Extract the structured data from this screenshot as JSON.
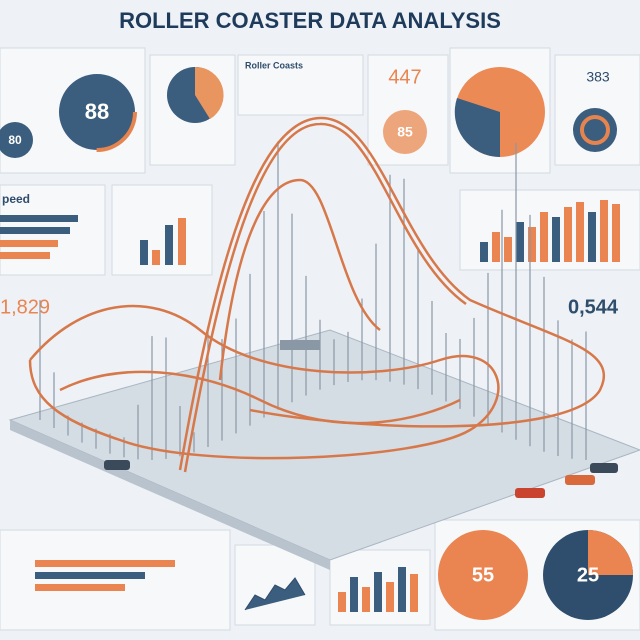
{
  "header": {
    "title": "ROLLER COASTER DATA ANALYSIS"
  },
  "panels": {
    "gauge_large": "88",
    "gauge_small": "80",
    "coaster_label": "Roller Coasts",
    "top_number": "447",
    "gauge_orange": "85",
    "top_right_number": "383",
    "speed_label": "peed",
    "left_number": "1,829",
    "right_number": "0,544",
    "bottom_gauge_orange": "55",
    "bottom_gauge_navy": "25"
  }
}
